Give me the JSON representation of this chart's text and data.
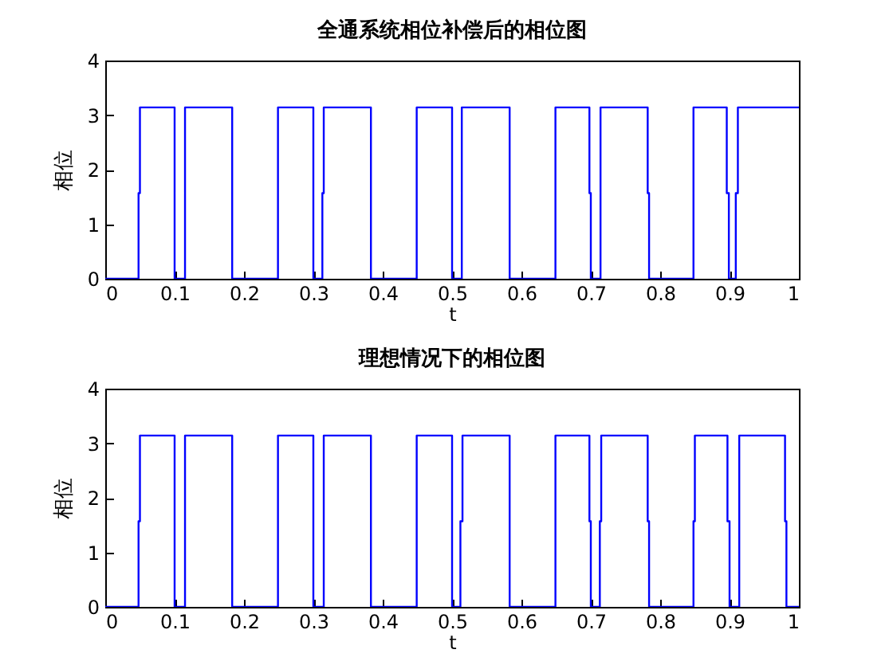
{
  "chart_data": [
    {
      "type": "line",
      "title": "全通系统相位补偿后的相位图",
      "xlabel": "t",
      "ylabel": "相位",
      "xlim": [
        0,
        1
      ],
      "ylim": [
        0,
        4
      ],
      "xticks": [
        0,
        0.1,
        0.2,
        0.3,
        0.4,
        0.5,
        0.6,
        0.7,
        0.8,
        0.9,
        1
      ],
      "yticks": [
        0,
        1,
        2,
        3,
        4
      ],
      "x": [
        0,
        0.048,
        0.048,
        0.05,
        0.05,
        0.1,
        0.1,
        0.115,
        0.115,
        0.183,
        0.183,
        0.249,
        0.249,
        0.3,
        0.3,
        0.313,
        0.313,
        0.315,
        0.315,
        0.383,
        0.383,
        0.449,
        0.449,
        0.5,
        0.5,
        0.514,
        0.514,
        0.583,
        0.583,
        0.649,
        0.649,
        0.698,
        0.698,
        0.7,
        0.7,
        0.714,
        0.714,
        0.782,
        0.782,
        0.784,
        0.784,
        0.848,
        0.848,
        0.896,
        0.896,
        0.899,
        0.899,
        0.909,
        0.909,
        0.912,
        0.912,
        1
      ],
      "series": [
        {
          "color": "#0000ff",
          "values": [
            0,
            0,
            1.57,
            1.57,
            3.14,
            3.14,
            0,
            0,
            3.14,
            3.14,
            0,
            0,
            3.14,
            3.14,
            0,
            0,
            1.57,
            1.57,
            3.14,
            3.14,
            0,
            0,
            3.14,
            3.14,
            0,
            0,
            3.14,
            3.14,
            0,
            0,
            3.14,
            3.14,
            1.57,
            1.57,
            0,
            0,
            3.14,
            3.14,
            1.57,
            1.57,
            0,
            0,
            3.14,
            3.14,
            1.57,
            1.57,
            0,
            0,
            1.57,
            1.57,
            3.14,
            3.14
          ]
        }
      ]
    },
    {
      "type": "line",
      "title": "理想情况下的相位图",
      "xlabel": "t",
      "ylabel": "相位",
      "xlim": [
        0,
        1
      ],
      "ylim": [
        0,
        4
      ],
      "xticks": [
        0,
        0.1,
        0.2,
        0.3,
        0.4,
        0.5,
        0.6,
        0.7,
        0.8,
        0.9,
        1
      ],
      "yticks": [
        0,
        1,
        2,
        3,
        4
      ],
      "x": [
        0,
        0.048,
        0.048,
        0.05,
        0.05,
        0.1,
        0.1,
        0.115,
        0.115,
        0.183,
        0.183,
        0.249,
        0.249,
        0.3,
        0.3,
        0.315,
        0.315,
        0.383,
        0.383,
        0.449,
        0.449,
        0.5,
        0.5,
        0.512,
        0.512,
        0.515,
        0.515,
        0.583,
        0.583,
        0.649,
        0.649,
        0.698,
        0.698,
        0.7,
        0.7,
        0.713,
        0.713,
        0.715,
        0.715,
        0.782,
        0.782,
        0.784,
        0.784,
        0.848,
        0.848,
        0.85,
        0.85,
        0.897,
        0.897,
        0.9,
        0.9,
        0.914,
        0.914,
        0.98,
        0.98,
        0.982,
        0.982,
        1
      ],
      "series": [
        {
          "color": "#0000ff",
          "values": [
            0,
            0,
            1.57,
            1.57,
            3.14,
            3.14,
            0,
            0,
            3.14,
            3.14,
            0,
            0,
            3.14,
            3.14,
            0,
            0,
            3.14,
            3.14,
            0,
            0,
            3.14,
            3.14,
            0,
            0,
            1.57,
            1.57,
            3.14,
            3.14,
            0,
            0,
            3.14,
            3.14,
            1.57,
            1.57,
            0,
            0,
            1.57,
            1.57,
            3.14,
            3.14,
            1.57,
            1.57,
            0,
            0,
            1.57,
            1.57,
            3.14,
            3.14,
            1.57,
            1.57,
            0,
            0,
            3.14,
            3.14,
            1.57,
            1.57,
            0,
            0
          ]
        }
      ]
    }
  ]
}
